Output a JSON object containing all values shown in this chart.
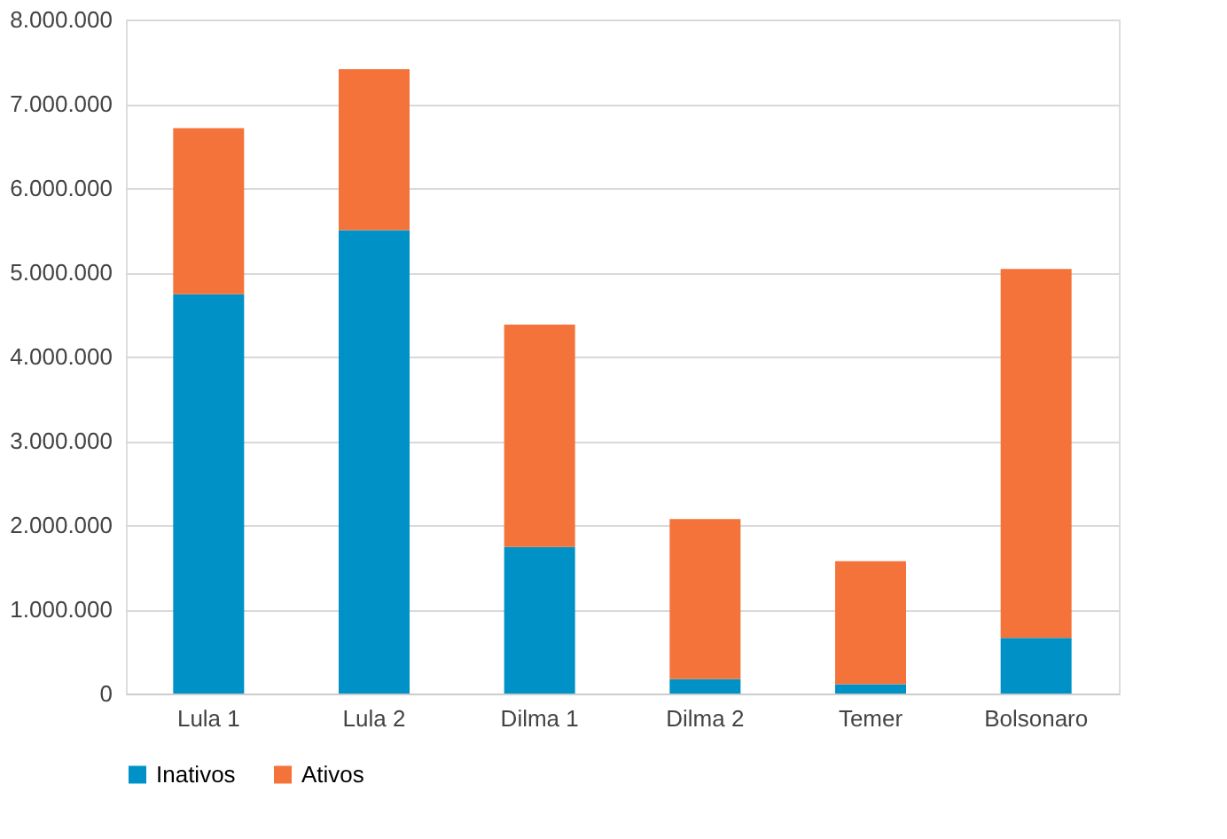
{
  "chart_data": {
    "type": "bar",
    "stacked": true,
    "categories": [
      "Lula 1",
      "Lula 2",
      "Dilma 1",
      "Dilma 2",
      "Temer",
      "Bolsonaro"
    ],
    "series": [
      {
        "name": "Inativos",
        "color": "#0092c6",
        "values": [
          4740000,
          5500000,
          1740000,
          170000,
          110000,
          660000
        ]
      },
      {
        "name": "Ativos",
        "color": "#f4733a",
        "values": [
          1970000,
          1910000,
          2640000,
          1900000,
          1460000,
          4380000
        ]
      }
    ],
    "ylim": [
      0,
      8000000
    ],
    "yticks": [
      {
        "value": 0,
        "label": "0"
      },
      {
        "value": 1000000,
        "label": "1.000.000"
      },
      {
        "value": 2000000,
        "label": "2.000.000"
      },
      {
        "value": 3000000,
        "label": "3.000.000"
      },
      {
        "value": 4000000,
        "label": "4.000.000"
      },
      {
        "value": 5000000,
        "label": "5.000.000"
      },
      {
        "value": 6000000,
        "label": "6.000.000"
      },
      {
        "value": 7000000,
        "label": "7.000.000"
      },
      {
        "value": 8000000,
        "label": "8.000.000"
      }
    ],
    "grid": "y",
    "legend": "bottom"
  }
}
